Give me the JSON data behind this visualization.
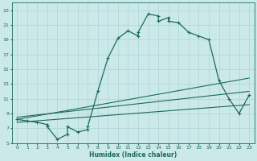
{
  "xlabel": "Humidex (Indice chaleur)",
  "xlim": [
    -0.5,
    23.5
  ],
  "ylim": [
    5,
    24
  ],
  "xticks": [
    0,
    1,
    2,
    3,
    4,
    5,
    6,
    7,
    8,
    9,
    10,
    11,
    12,
    13,
    14,
    15,
    16,
    17,
    18,
    19,
    20,
    21,
    22,
    23
  ],
  "yticks": [
    5,
    7,
    9,
    11,
    13,
    15,
    17,
    19,
    21,
    23
  ],
  "bg_color": "#cce9e9",
  "grid_color": "#b0d8d8",
  "line_color": "#1a6b5a",
  "main_x": [
    0,
    1,
    2,
    3,
    3,
    4,
    5,
    5,
    6,
    7,
    7,
    8,
    9,
    10,
    11,
    12,
    12,
    13,
    14,
    14,
    15,
    15,
    16,
    17,
    18,
    19,
    20,
    21,
    22,
    23
  ],
  "main_y": [
    8.2,
    8.0,
    7.8,
    7.5,
    7.2,
    5.5,
    6.2,
    7.2,
    6.5,
    6.8,
    7.2,
    12.0,
    16.5,
    19.2,
    20.2,
    19.5,
    20.0,
    22.5,
    22.2,
    21.5,
    22.0,
    21.5,
    21.3,
    20.0,
    19.5,
    19.0,
    13.5,
    11.0,
    9.0,
    11.5
  ],
  "trend1_x": [
    0,
    23
  ],
  "trend1_y": [
    8.2,
    13.8
  ],
  "trend2_x": [
    0,
    23
  ],
  "trend2_y": [
    8.5,
    12.0
  ],
  "trend3_x": [
    0,
    23
  ],
  "trend3_y": [
    7.8,
    10.2
  ]
}
